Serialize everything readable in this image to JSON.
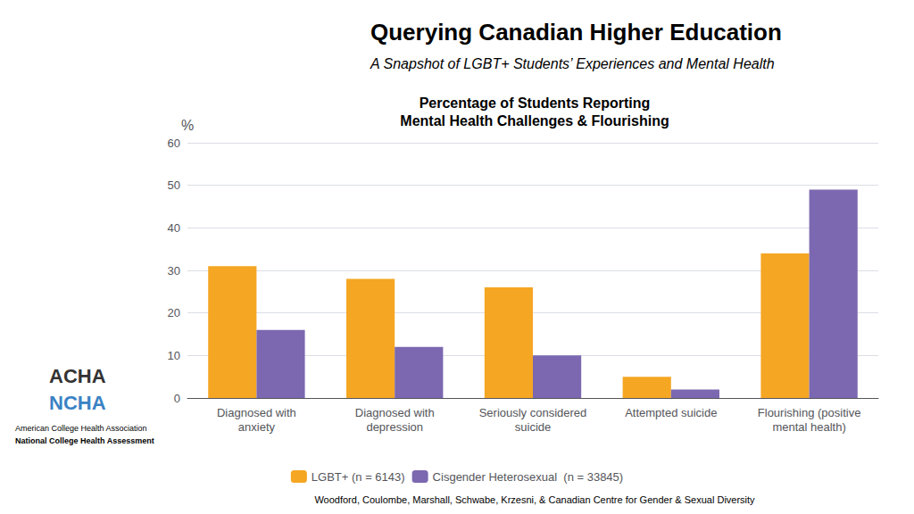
{
  "chart_data": {
    "type": "bar",
    "title": "Querying Canadian Higher Education",
    "subtitle": "A Snapshot of LGBT+ Students’ Experiences and Mental Health",
    "annotations": [
      "Percentage of Students Reporting",
      "Mental Health Challenges & Flourishing",
      "Woodford, Coulombe, Marshall, Schwabe, Krzesni, & Canadian Centre for Gender & Sexual Diversity",
      "ACHA",
      "NCHA",
      "American College Health Association",
      "National College Health Assessment"
    ],
    "y_label": "%",
    "categories": [
      "Diagnosed with\nanxiety",
      "Diagnosed with\ndepression",
      "Seriously considered\nsuicide",
      "Attempted suicide",
      "Flourishing (positive\nmental health)"
    ],
    "series": [
      {
        "name": "LGBT+ (n = 6143)",
        "color": "#F5A623",
        "values": [
          31,
          28,
          26,
          5,
          34
        ]
      },
      {
        "name": "Cisgender Heterosexual  (n = 33845)",
        "color": "#7B68B0",
        "values": [
          16,
          12,
          10,
          2,
          49
        ]
      }
    ],
    "ylim": [
      0,
      60
    ],
    "yticks": [
      0,
      10,
      20,
      30,
      40,
      50,
      60
    ],
    "grid": true,
    "legend": "bottom"
  }
}
